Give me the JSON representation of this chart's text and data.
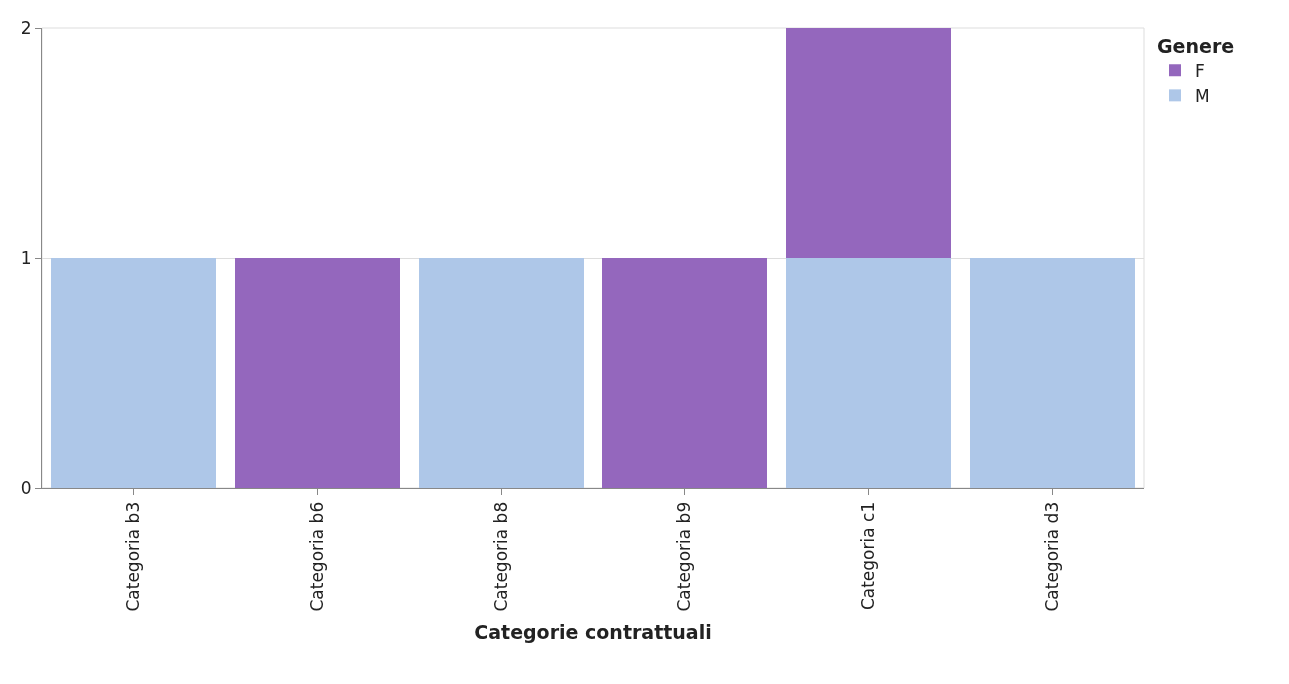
{
  "chart_data": {
    "type": "bar",
    "stacked": true,
    "xlabel": "Categorie contrattuali",
    "legend_title": "Genere",
    "categories": [
      "Categoria b3",
      "Categoria b6",
      "Categoria b8",
      "Categoria b9",
      "Categoria c1",
      "Categoria d3"
    ],
    "series": [
      {
        "name": "M",
        "color": "#aec7e8",
        "values": [
          1,
          null,
          1,
          null,
          1,
          1
        ]
      },
      {
        "name": "F",
        "color": "#9467bd",
        "values": [
          null,
          1,
          null,
          1,
          1,
          null
        ]
      }
    ],
    "ylim": [
      0,
      2
    ],
    "yticks": [
      0,
      1,
      2
    ],
    "grid": "y",
    "legend": "top right"
  }
}
